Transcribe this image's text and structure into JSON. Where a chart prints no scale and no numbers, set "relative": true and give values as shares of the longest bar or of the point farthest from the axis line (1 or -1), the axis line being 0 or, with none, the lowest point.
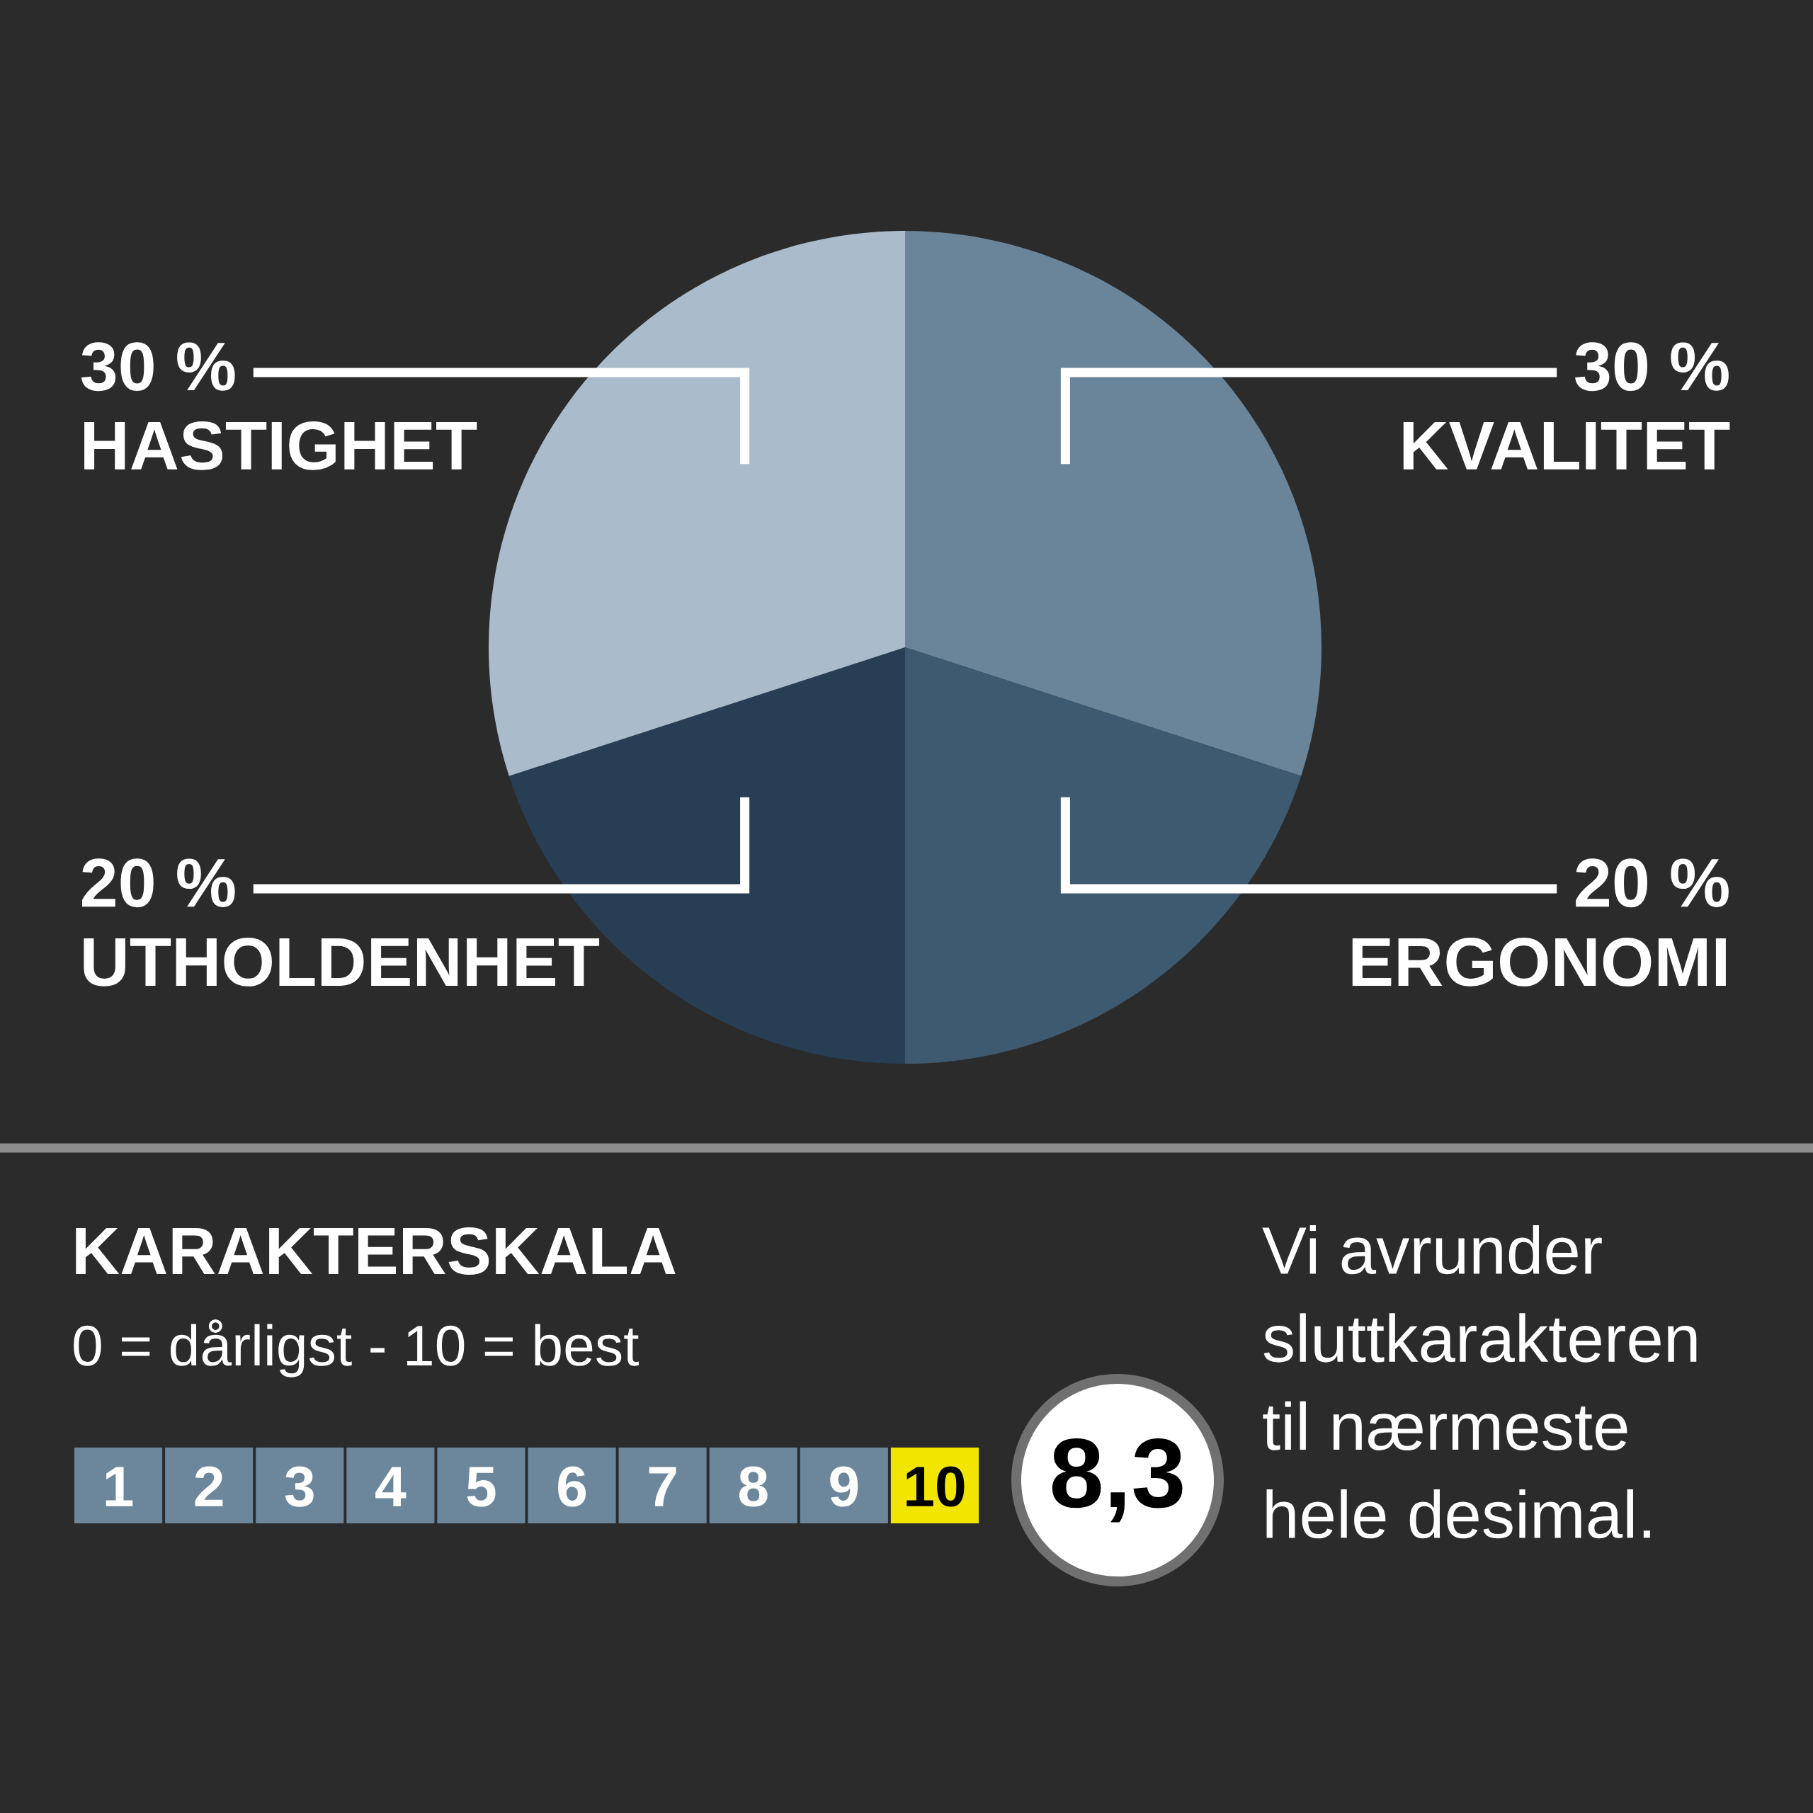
{
  "chart_data": [
    {
      "type": "pie",
      "categories": [
        "KVALITET",
        "ERGONOMI",
        "UTHOLDENHET",
        "HASTIGHET"
      ],
      "values": [
        30,
        20,
        20,
        30
      ],
      "colors": [
        "#6a8499",
        "#3e5a70",
        "#283e55",
        "#aabccb"
      ],
      "value_labels": [
        "30 %",
        "20 %",
        "20 %",
        "30 %"
      ]
    },
    {
      "type": "bar",
      "title": "KARAKTERSKALA",
      "subtitle": "0 = dårligst - 10 = best",
      "categories": [
        "1",
        "2",
        "3",
        "4",
        "5",
        "6",
        "7",
        "8",
        "9",
        "10"
      ],
      "values": [
        1,
        1,
        1,
        1,
        1,
        1,
        1,
        1,
        1,
        1
      ],
      "relative": true,
      "colors": [
        "#6c879c",
        "#6c879c",
        "#6c879c",
        "#6c879c",
        "#6c879c",
        "#6c879c",
        "#6c879c",
        "#6c879c",
        "#6c879c",
        "#f2e600"
      ],
      "annotations": [
        "8,3",
        "Vi avrunder\nsluttkarakteren\ntil nærmeste\nhele desimal."
      ]
    }
  ]
}
